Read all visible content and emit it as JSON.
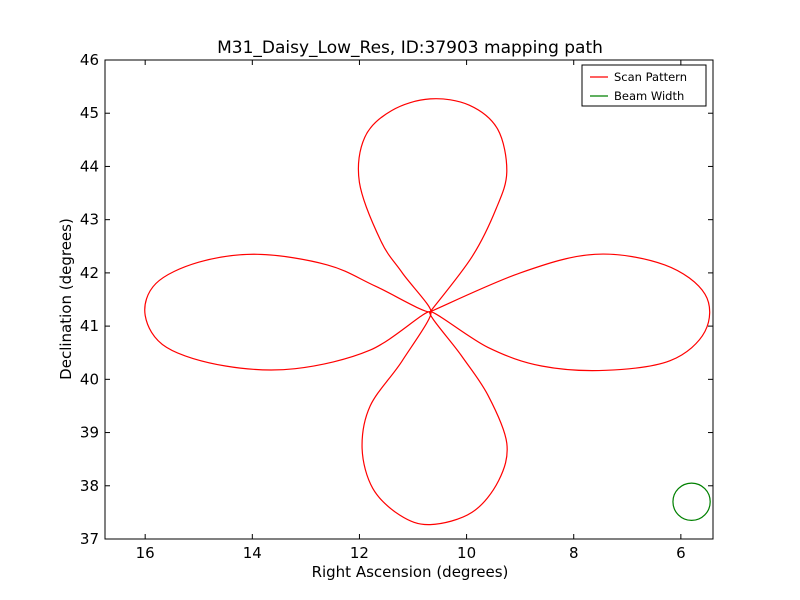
{
  "chart_data": {
    "type": "line",
    "title": "M31_Daisy_Low_Res, ID:37903 mapping path",
    "xlabel": "Right Ascension (degrees)",
    "ylabel": "Declination (degrees)",
    "xlim": [
      16.75,
      5.4
    ],
    "ylim": [
      37,
      46
    ],
    "x_ticks": [
      16,
      14,
      12,
      10,
      8,
      6
    ],
    "y_ticks": [
      37,
      38,
      39,
      40,
      41,
      42,
      43,
      44,
      45,
      46
    ],
    "grid": false,
    "legend_position": "top-right",
    "series": [
      {
        "name": "Scan Pattern",
        "color": "#ff0000",
        "pattern": "four-petal daisy",
        "center": [
          10.68,
          41.27
        ],
        "x": [
          10.68,
          9.9,
          9.45,
          9.25,
          9.42,
          9.95,
          10.68,
          11.4,
          11.9,
          12.0,
          11.6,
          11.2,
          10.68,
          11.7,
          12.6,
          13.9,
          15.0,
          15.8,
          16.0,
          15.6,
          14.5,
          13.2,
          11.8,
          10.68,
          11.2,
          11.8,
          11.95,
          11.75,
          11.25,
          10.68,
          9.9,
          9.4,
          9.25,
          9.6,
          10.1,
          10.68,
          9.6,
          8.6,
          7.4,
          6.2,
          5.55,
          5.55,
          6.3,
          7.6,
          9.0,
          10.68
        ],
        "y": [
          41.27,
          42.3,
          43.2,
          43.9,
          44.7,
          45.15,
          45.27,
          45.05,
          44.55,
          43.7,
          42.6,
          42.0,
          41.27,
          41.75,
          42.15,
          42.35,
          42.2,
          41.8,
          41.2,
          40.6,
          40.25,
          40.2,
          40.55,
          41.27,
          40.35,
          39.5,
          38.7,
          37.95,
          37.45,
          37.27,
          37.5,
          38.1,
          38.8,
          39.7,
          40.45,
          41.27,
          40.6,
          40.25,
          40.17,
          40.35,
          40.9,
          41.6,
          42.15,
          42.35,
          42.0,
          41.27
        ]
      },
      {
        "name": "Beam Width",
        "color": "#008000",
        "center": [
          5.8,
          37.7
        ],
        "radius_deg": 0.35
      }
    ]
  }
}
